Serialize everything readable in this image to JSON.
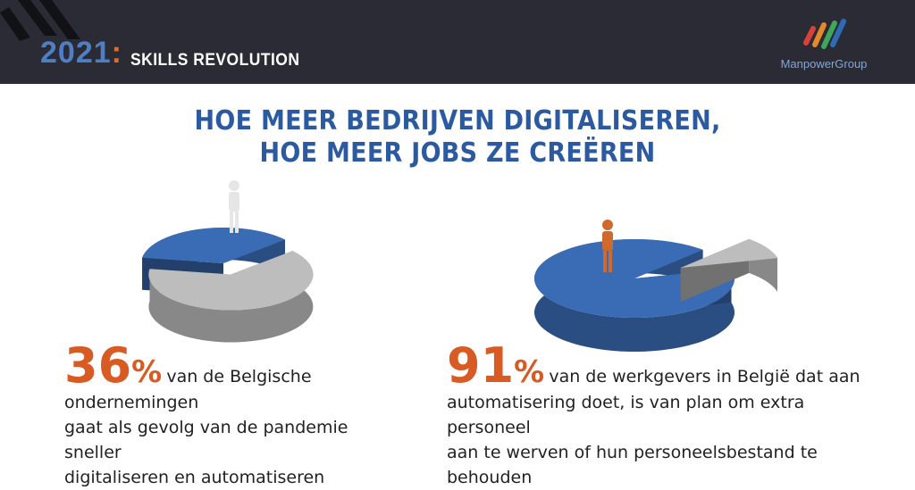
{
  "header": {
    "year_part1": "2021",
    "year_part2": ":",
    "subtitle": "SKILLS REVOLUTION",
    "logo_text": "ManpowerGroup"
  },
  "headline": {
    "line1": "HOE MEER BEDRIJVEN DIGITALISEREN,",
    "line2": "HOE MEER JOBS ZE CREËREN"
  },
  "chart_data": [
    {
      "type": "pie",
      "values": [
        36,
        64
      ],
      "colors": [
        "#3a6bb5",
        "#bdbdbd"
      ],
      "highlight_value": "36",
      "highlight_unit": "%",
      "caption_lines": [
        "van de Belgische ondernemingen",
        "gaat als gevolg van de pandemie sneller",
        "digitaliseren en automatiseren"
      ]
    },
    {
      "type": "pie",
      "values": [
        91,
        9
      ],
      "colors": [
        "#3a6bb5",
        "#bdbdbd"
      ],
      "highlight_value": "91",
      "highlight_unit": "%",
      "caption_lines": [
        "van de werkgevers in België dat aan",
        "automatisering doet, is van plan om extra personeel",
        "aan te werven of hun personeelsbestand te behouden"
      ]
    }
  ],
  "colors": {
    "header_bg": "#2b2b35",
    "accent_blue": "#2c5aa0",
    "accent_orange": "#d75b23"
  }
}
